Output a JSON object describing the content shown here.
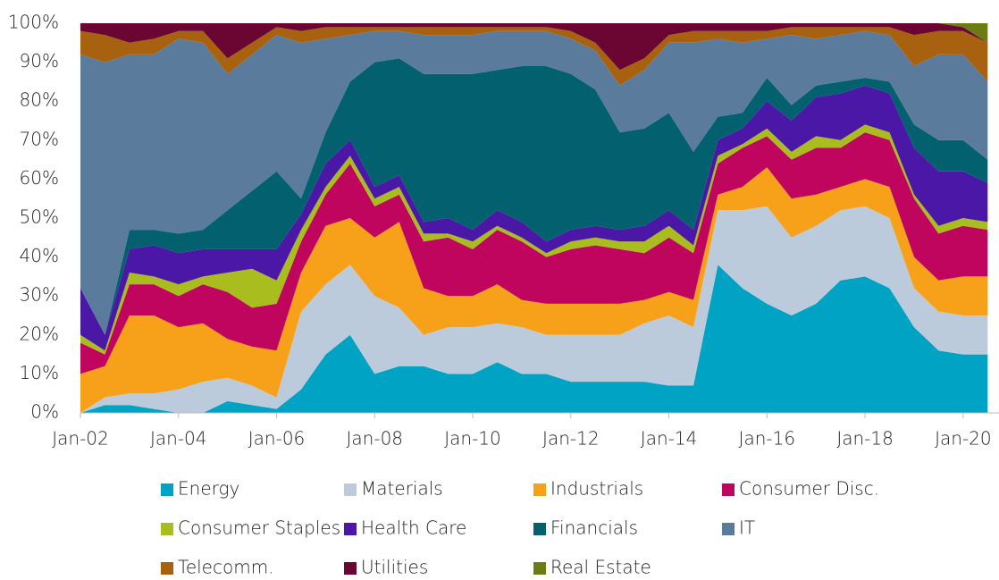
{
  "chart_data": {
    "type": "stacked_area_100",
    "categories": [
      "Jan-02",
      null,
      null,
      null,
      "Jan-04",
      null,
      null,
      null,
      "Jan-06",
      null,
      null,
      null,
      "Jan-08",
      null,
      null,
      null,
      "Jan-10",
      null,
      null,
      null,
      "Jan-12",
      null,
      null,
      null,
      "Jan-14",
      null,
      null,
      null,
      "Jan-16",
      null,
      null,
      null,
      "Jan-18",
      null,
      null,
      null,
      "Jan-20",
      null
    ],
    "ylim": [
      0,
      100
    ],
    "yticks": [
      {
        "value": 0,
        "label": "0%"
      },
      {
        "value": 10,
        "label": "10%"
      },
      {
        "value": 20,
        "label": "20%"
      },
      {
        "value": 30,
        "label": "30%"
      },
      {
        "value": 40,
        "label": "40%"
      },
      {
        "value": 50,
        "label": "50%"
      },
      {
        "value": 60,
        "label": "60%"
      },
      {
        "value": 70,
        "label": "70%"
      },
      {
        "value": 80,
        "label": "80%"
      },
      {
        "value": 90,
        "label": "90%"
      },
      {
        "value": 100,
        "label": "100%"
      }
    ],
    "series": [
      {
        "name": "Energy",
        "color": "#00a3c4",
        "values": [
          0,
          2,
          2,
          1,
          0,
          0,
          3,
          2,
          1,
          6,
          15,
          20,
          10,
          12,
          12,
          10,
          10,
          13,
          10,
          10,
          8,
          8,
          8,
          8,
          7,
          7,
          38,
          32,
          28,
          25,
          28,
          34,
          35,
          32,
          22,
          16,
          15,
          15
        ]
      },
      {
        "name": "Materials",
        "color": "#bccbdb",
        "values": [
          0,
          2,
          3,
          4,
          6,
          8,
          6,
          5,
          3,
          20,
          18,
          18,
          20,
          15,
          8,
          12,
          12,
          10,
          12,
          10,
          12,
          12,
          12,
          15,
          18,
          15,
          14,
          20,
          25,
          20,
          20,
          18,
          18,
          18,
          10,
          10,
          10,
          10
        ]
      },
      {
        "name": "Industrials",
        "color": "#f7a11a",
        "values": [
          10,
          8,
          20,
          20,
          16,
          15,
          10,
          10,
          12,
          10,
          15,
          12,
          15,
          22,
          12,
          8,
          8,
          10,
          7,
          8,
          8,
          8,
          8,
          6,
          6,
          7,
          4,
          6,
          10,
          10,
          8,
          6,
          7,
          8,
          8,
          8,
          10,
          10
        ]
      },
      {
        "name": "Consumer Disc.",
        "color": "#c0055e",
        "values": [
          8,
          3,
          8,
          8,
          8,
          10,
          12,
          10,
          12,
          8,
          8,
          14,
          8,
          7,
          12,
          15,
          12,
          14,
          15,
          12,
          14,
          15,
          14,
          12,
          14,
          12,
          8,
          10,
          8,
          10,
          12,
          10,
          12,
          12,
          15,
          12,
          13,
          12
        ]
      },
      {
        "name": "Consumer Staples",
        "color": "#aabd1e",
        "values": [
          2,
          1,
          3,
          2,
          3,
          2,
          5,
          10,
          6,
          3,
          2,
          2,
          2,
          2,
          2,
          1,
          2,
          1,
          1,
          1,
          2,
          2,
          2,
          3,
          3,
          2,
          2,
          1,
          2,
          2,
          3,
          2,
          2,
          2,
          1,
          2,
          2,
          2
        ]
      },
      {
        "name": "Health Care",
        "color": "#4a17a6",
        "values": [
          12,
          4,
          6,
          8,
          8,
          7,
          6,
          5,
          8,
          4,
          6,
          4,
          3,
          3,
          3,
          4,
          3,
          4,
          4,
          3,
          3,
          3,
          3,
          4,
          4,
          4,
          4,
          4,
          7,
          8,
          10,
          12,
          10,
          10,
          12,
          14,
          12,
          10
        ]
      },
      {
        "name": "Financials",
        "color": "#03606e",
        "values": [
          0,
          0,
          5,
          4,
          5,
          5,
          10,
          15,
          20,
          4,
          8,
          15,
          32,
          30,
          38,
          37,
          40,
          36,
          40,
          45,
          40,
          35,
          25,
          25,
          25,
          20,
          6,
          4,
          6,
          4,
          3,
          3,
          2,
          3,
          6,
          8,
          8,
          6
        ]
      },
      {
        "name": "IT",
        "color": "#5b7b9c",
        "values": [
          60,
          70,
          45,
          45,
          50,
          48,
          35,
          35,
          35,
          40,
          24,
          12,
          8,
          7,
          10,
          10,
          10,
          10,
          9,
          9,
          9,
          10,
          12,
          15,
          18,
          28,
          20,
          18,
          10,
          18,
          12,
          12,
          12,
          12,
          15,
          22,
          22,
          20
        ]
      },
      {
        "name": "Telecomm.",
        "color": "#a8620f",
        "values": [
          6,
          7,
          3,
          4,
          2,
          3,
          4,
          3,
          2,
          3,
          3,
          2,
          1,
          1,
          2,
          2,
          2,
          1,
          1,
          1,
          2,
          2,
          4,
          3,
          2,
          3,
          2,
          3,
          2,
          2,
          3,
          2,
          1,
          2,
          8,
          6,
          6,
          10
        ]
      },
      {
        "name": "Utilities",
        "color": "#6b0532",
        "values": [
          2,
          3,
          5,
          4,
          2,
          2,
          9,
          5,
          1,
          2,
          1,
          1,
          1,
          1,
          1,
          1,
          1,
          1,
          1,
          1,
          2,
          5,
          12,
          9,
          3,
          2,
          2,
          2,
          2,
          1,
          1,
          1,
          1,
          1,
          3,
          2,
          1,
          0
        ]
      },
      {
        "name": "Real Estate",
        "color": "#6a7c12",
        "values": [
          0,
          0,
          0,
          0,
          0,
          0,
          0,
          0,
          0,
          0,
          0,
          0,
          0,
          0,
          0,
          0,
          0,
          0,
          0,
          0,
          0,
          0,
          0,
          0,
          0,
          0,
          0,
          0,
          0,
          0,
          0,
          0,
          0,
          0,
          0,
          0,
          1,
          5
        ]
      }
    ]
  }
}
